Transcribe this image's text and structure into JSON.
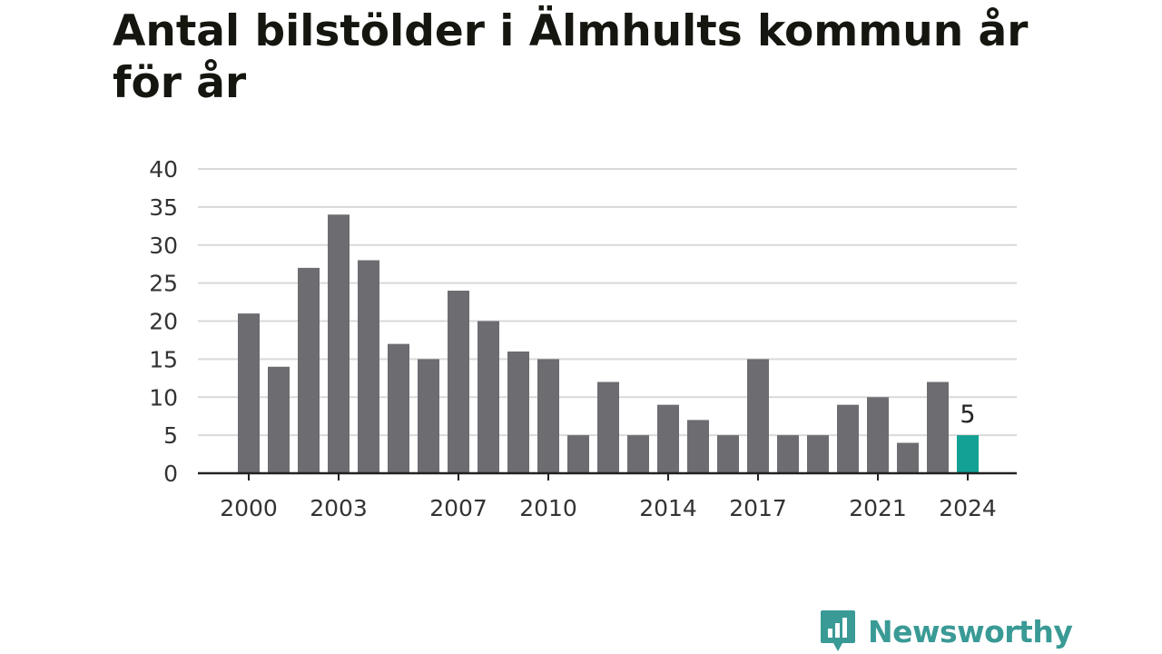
{
  "chart_data": {
    "type": "bar",
    "title": "Antal bilstölder i Älmhults kommun år för år",
    "xlabel": "",
    "ylabel": "",
    "categories": [
      "2000",
      "2001",
      "2002",
      "2003",
      "2004",
      "2005",
      "2006",
      "2007",
      "2008",
      "2009",
      "2010",
      "2011",
      "2012",
      "2013",
      "2014",
      "2015",
      "2016",
      "2017",
      "2018",
      "2019",
      "2020",
      "2021",
      "2022",
      "2023",
      "2024"
    ],
    "values": [
      21,
      14,
      27,
      34,
      28,
      17,
      15,
      24,
      20,
      16,
      15,
      5,
      12,
      5,
      9,
      7,
      5,
      15,
      5,
      5,
      9,
      10,
      4,
      12,
      5
    ],
    "x_tick_labels": [
      "2000",
      "2003",
      "2007",
      "2010",
      "2014",
      "2017",
      "2021",
      "2024"
    ],
    "y_ticks": [
      0,
      5,
      10,
      15,
      20,
      25,
      30,
      35,
      40
    ],
    "ylim": [
      0,
      40
    ],
    "grid": true,
    "highlight": {
      "category": "2024",
      "label": "5"
    },
    "colors": {
      "bar": "#6d6c71",
      "highlight": "#12a194",
      "grid": "#d9d9d9",
      "axis": "#222222",
      "text": "#333333"
    }
  },
  "brand": {
    "name": "Newsworthy",
    "color": "#3a9a95"
  }
}
